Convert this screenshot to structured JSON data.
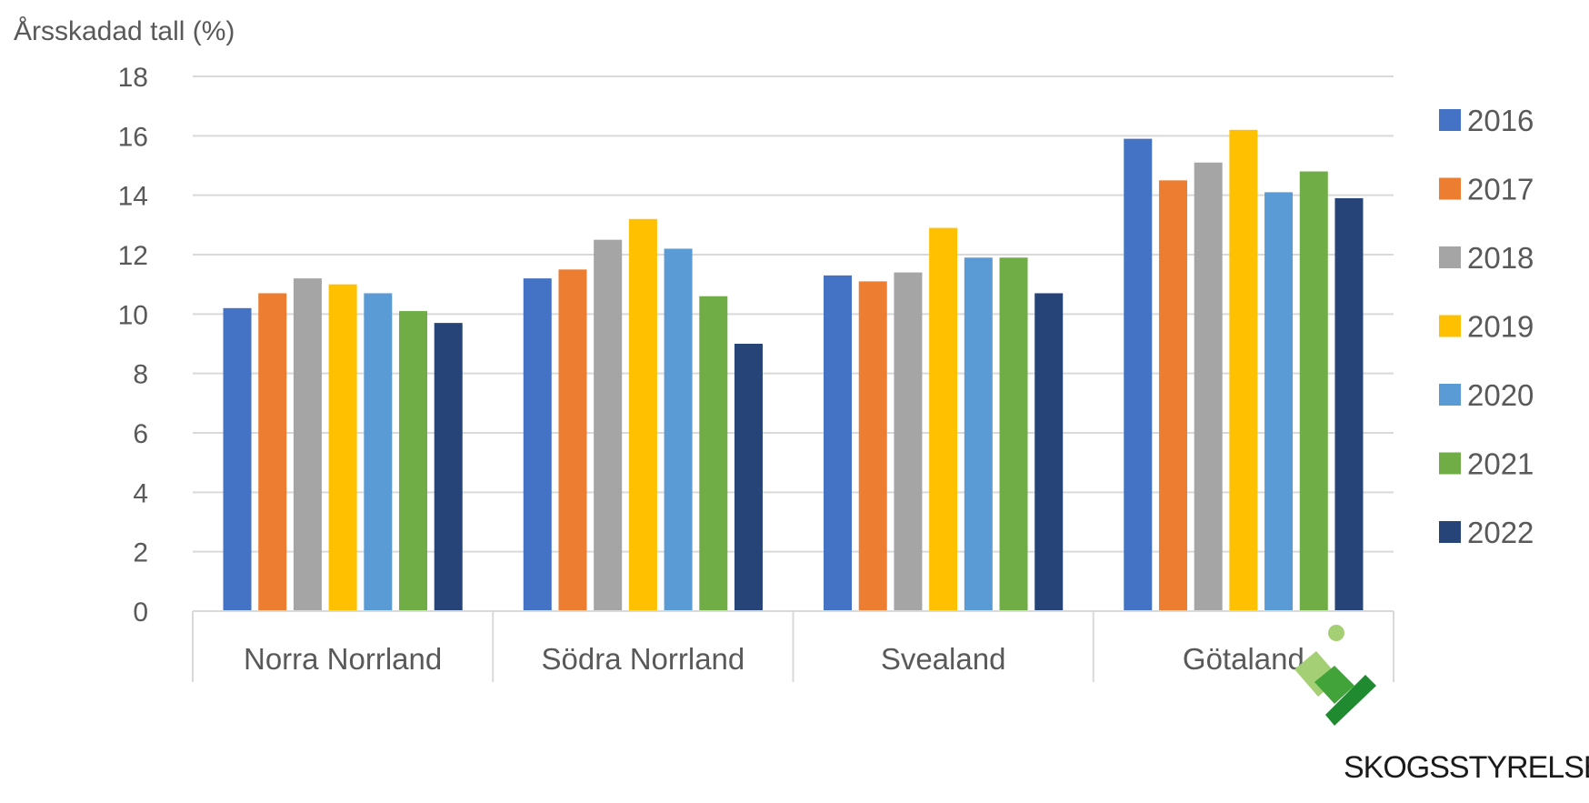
{
  "chart_data": {
    "type": "bar",
    "ylabel": "Årsskadad tall (%)",
    "ylim": [
      0,
      18
    ],
    "yticks": [
      0,
      2,
      4,
      6,
      8,
      10,
      12,
      14,
      16,
      18
    ],
    "grid": true,
    "legend_position": "right",
    "categories": [
      "Norra Norrland",
      "Södra Norrland",
      "Svealand",
      "Götaland"
    ],
    "series": [
      {
        "name": "2016",
        "color": "#4472C4",
        "values": [
          10.2,
          11.2,
          11.3,
          15.9
        ]
      },
      {
        "name": "2017",
        "color": "#ED7D31",
        "values": [
          10.7,
          11.5,
          11.1,
          14.5
        ]
      },
      {
        "name": "2018",
        "color": "#A5A5A5",
        "values": [
          11.2,
          12.5,
          11.4,
          15.1
        ]
      },
      {
        "name": "2019",
        "color": "#FFC000",
        "values": [
          11.0,
          13.2,
          12.9,
          16.2
        ]
      },
      {
        "name": "2020",
        "color": "#5B9BD5",
        "values": [
          10.7,
          12.2,
          11.9,
          14.1
        ]
      },
      {
        "name": "2021",
        "color": "#70AD47",
        "values": [
          10.1,
          10.6,
          11.9,
          14.8
        ]
      },
      {
        "name": "2022",
        "color": "#264478",
        "values": [
          9.7,
          9.0,
          10.7,
          13.9
        ]
      }
    ]
  },
  "logo": {
    "text": "SKOGSSTYRELSEN",
    "icon": "skogsstyrelsen-logo-icon"
  }
}
